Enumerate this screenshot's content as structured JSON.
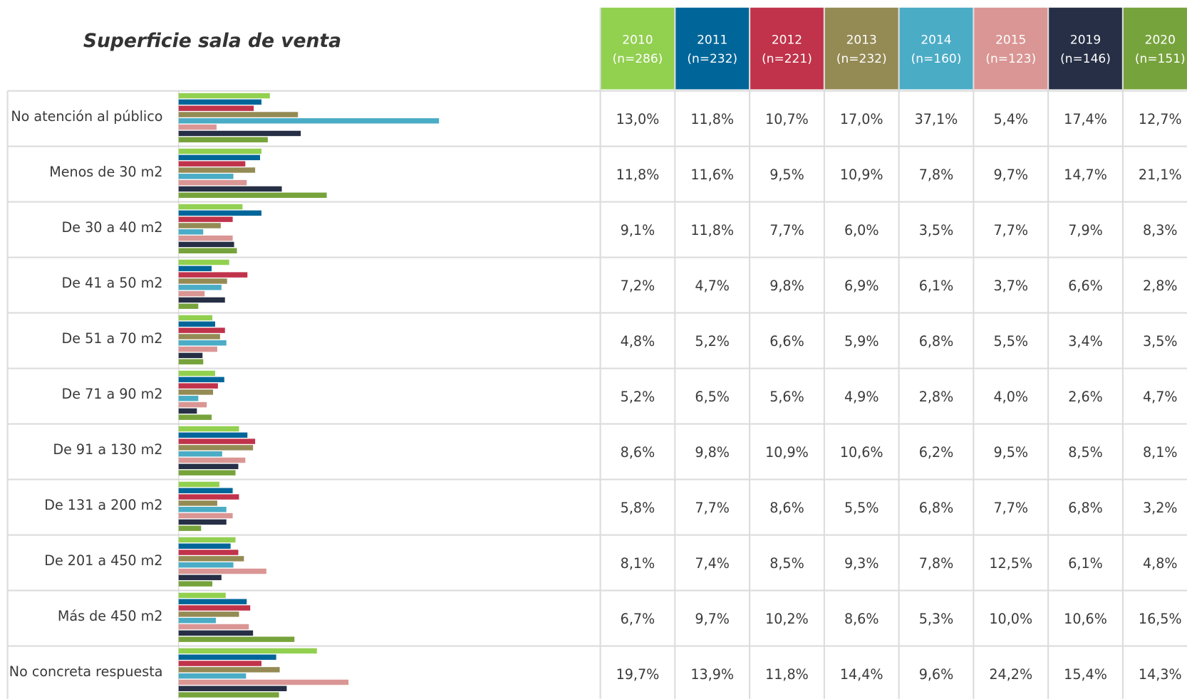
{
  "chart_data": {
    "type": "bar",
    "orientation": "horizontal",
    "title": "Superficie sala de venta",
    "categories": [
      "No atención al público",
      "Menos de 30 m2",
      "De 30 a 40 m2",
      "De 41 a 50 m2",
      "De 51 a 70 m2",
      "De 71 a 90 m2",
      "De 91 a 130 m2",
      "De 131 a 200 m2",
      "De 201 a 450 m2",
      "Más de 450 m2",
      "No concreta respuesta"
    ],
    "series": [
      {
        "name": "2010",
        "n_label": "(n=286)",
        "color": "#92d050",
        "values": [
          13.0,
          11.8,
          9.1,
          7.2,
          4.8,
          5.2,
          8.6,
          5.8,
          8.1,
          6.7,
          19.7
        ],
        "value_labels": [
          "13,0%",
          "11,8%",
          "9,1%",
          "7,2%",
          "4,8%",
          "5,2%",
          "8,6%",
          "5,8%",
          "8,1%",
          "6,7%",
          "19,7%"
        ]
      },
      {
        "name": "2011",
        "n_label": "(n=232)",
        "color": "#006699",
        "values": [
          11.8,
          11.6,
          11.8,
          4.7,
          5.2,
          6.5,
          9.8,
          7.7,
          7.4,
          9.7,
          13.9
        ],
        "value_labels": [
          "11,8%",
          "11,6%",
          "11,8%",
          "4,7%",
          "5,2%",
          "6,5%",
          "9,8%",
          "7,7%",
          "7,4%",
          "9,7%",
          "13,9%"
        ]
      },
      {
        "name": "2012",
        "n_label": "(n=221)",
        "color": "#c0334a",
        "values": [
          10.7,
          9.5,
          7.7,
          9.8,
          6.6,
          5.6,
          10.9,
          8.6,
          8.5,
          10.2,
          11.8
        ],
        "value_labels": [
          "10,7%",
          "9,5%",
          "7,7%",
          "9,8%",
          "6,6%",
          "5,6%",
          "10,9%",
          "8,6%",
          "8,5%",
          "10,2%",
          "11,8%"
        ]
      },
      {
        "name": "2013",
        "n_label": "(n=232)",
        "color": "#948a54",
        "values": [
          17.0,
          10.9,
          6.0,
          6.9,
          5.9,
          4.9,
          10.6,
          5.5,
          9.3,
          8.6,
          14.4
        ],
        "value_labels": [
          "17,0%",
          "10,9%",
          "6,0%",
          "6,9%",
          "5,9%",
          "4,9%",
          "10,6%",
          "5,5%",
          "9,3%",
          "8,6%",
          "14,4%"
        ]
      },
      {
        "name": "2014",
        "n_label": "(n=160)",
        "color": "#4bacc6",
        "values": [
          37.1,
          7.8,
          3.5,
          6.1,
          6.8,
          2.8,
          6.2,
          6.8,
          7.8,
          5.3,
          9.6
        ],
        "value_labels": [
          "37,1%",
          "7,8%",
          "3,5%",
          "6,1%",
          "6,8%",
          "2,8%",
          "6,2%",
          "6,8%",
          "7,8%",
          "5,3%",
          "9,6%"
        ]
      },
      {
        "name": "2015",
        "n_label": "(n=123)",
        "color": "#da9694",
        "values": [
          5.4,
          9.7,
          7.7,
          3.7,
          5.5,
          4.0,
          9.5,
          7.7,
          12.5,
          10.0,
          24.2
        ],
        "value_labels": [
          "5,4%",
          "9,7%",
          "7,7%",
          "3,7%",
          "5,5%",
          "4,0%",
          "9,5%",
          "7,7%",
          "12,5%",
          "10,0%",
          "24,2%"
        ]
      },
      {
        "name": "2019",
        "n_label": "(n=146)",
        "color": "#262f45",
        "values": [
          17.4,
          14.7,
          7.9,
          6.6,
          3.4,
          2.6,
          8.5,
          6.8,
          6.1,
          10.6,
          15.4
        ],
        "value_labels": [
          "17,4%",
          "14,7%",
          "7,9%",
          "6,6%",
          "3,4%",
          "2,6%",
          "8,5%",
          "6,8%",
          "6,1%",
          "10,6%",
          "15,4%"
        ]
      },
      {
        "name": "2020",
        "n_label": "(n=151)",
        "color": "#77a33c",
        "values": [
          12.7,
          21.1,
          8.3,
          2.8,
          3.5,
          4.7,
          8.1,
          3.2,
          4.8,
          16.5,
          14.3
        ],
        "value_labels": [
          "12,7%",
          "21,1%",
          "8,3%",
          "2,8%",
          "3,5%",
          "4,7%",
          "8,1%",
          "3,2%",
          "4,8%",
          "16,5%",
          "14,3%"
        ]
      }
    ]
  }
}
